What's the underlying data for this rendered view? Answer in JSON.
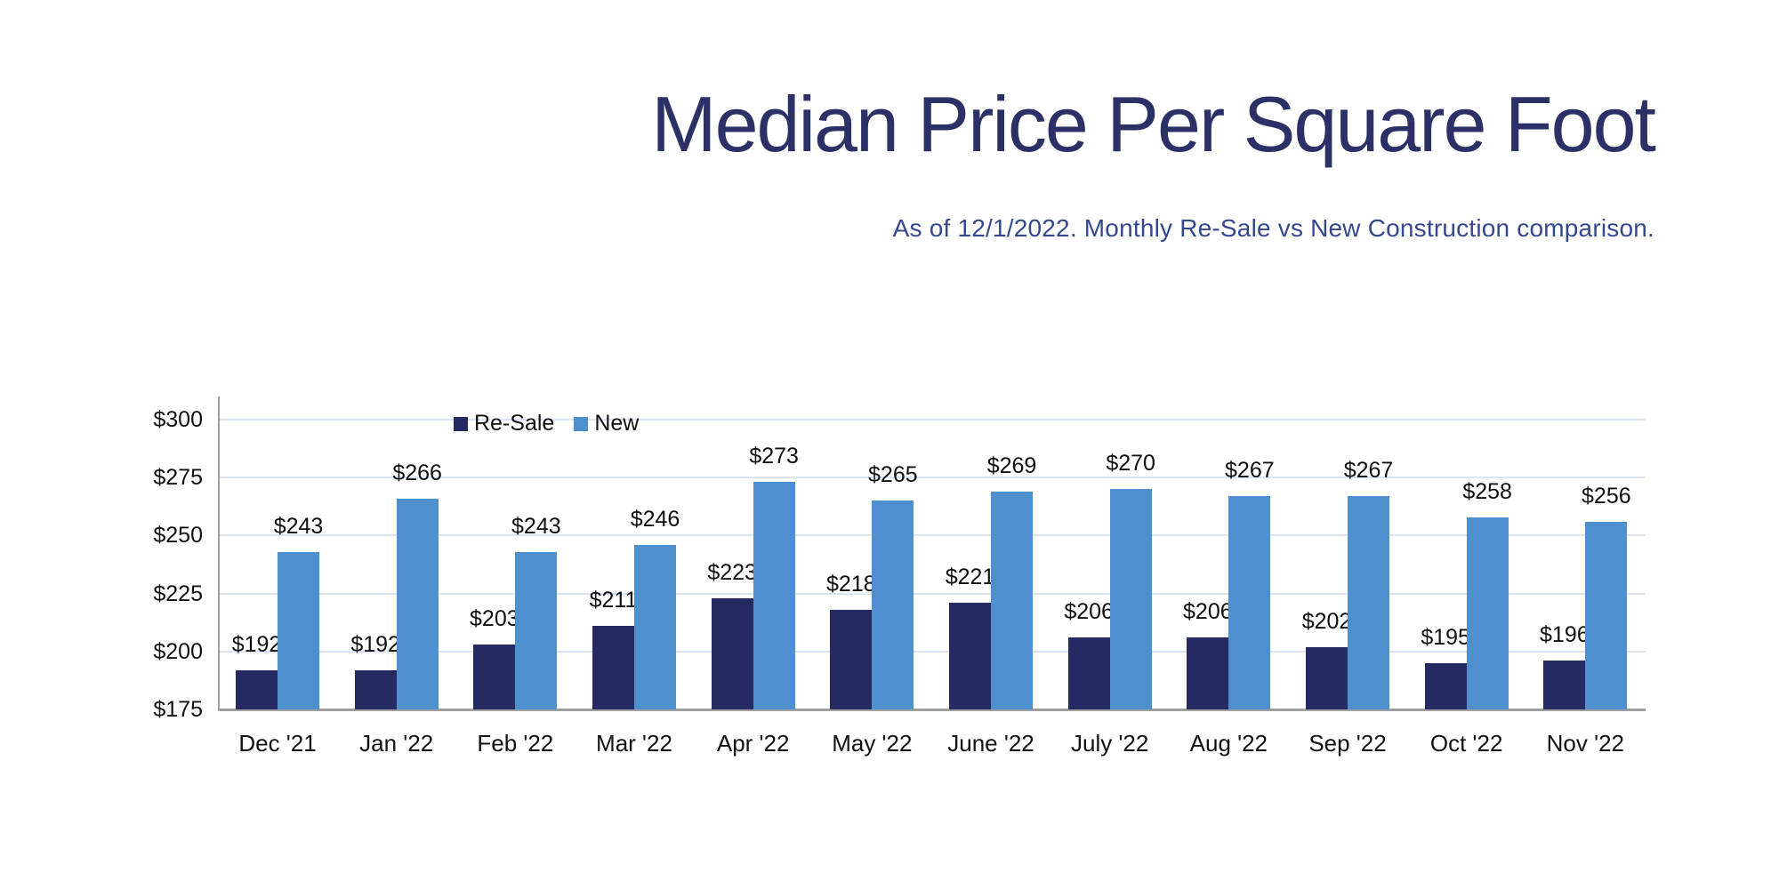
{
  "header": {
    "title": "Median Price Per Square Foot",
    "subtitle": "As of 12/1/2022. Monthly Re-Sale vs New Construction comparison."
  },
  "colors": {
    "title_text": "#2b3166",
    "subtitle_text": "#35488f",
    "resale_bar": "#262a63",
    "new_bar": "#4e90cd",
    "gridline": "#dde4f1",
    "axis_line": "#9f9f9f",
    "label_text": "#0f0f0f"
  },
  "chart_data": {
    "type": "bar",
    "title": "Median Price Per Square Foot",
    "subtitle": "As of 12/1/2022. Monthly Re-Sale vs New Construction comparison.",
    "categories": [
      "Dec '21",
      "Jan '22",
      "Feb '22",
      "Mar '22",
      "Apr '22",
      "May '22",
      "June '22",
      "July '22",
      "Aug '22",
      "Sep '22",
      "Oct '22",
      "Nov '22"
    ],
    "series": [
      {
        "name": "Re-Sale",
        "color": "#262a63",
        "values": [
          192,
          192,
          203,
          211,
          223,
          218,
          221,
          206,
          206,
          202,
          195,
          196
        ]
      },
      {
        "name": "New",
        "color": "#4e90cd",
        "values": [
          243,
          266,
          243,
          246,
          273,
          265,
          269,
          270,
          267,
          267,
          258,
          256
        ]
      }
    ],
    "value_label_prefix": "$",
    "data_labels": true,
    "xlabel": "",
    "ylabel": "",
    "y_axis": {
      "min": 175,
      "max": 300,
      "tick_step": 25,
      "tick_values": [
        300,
        275,
        250,
        225,
        200,
        175
      ],
      "tick_labels": [
        "$300",
        "$275",
        "$250",
        "$225",
        "$200",
        "$175"
      ],
      "prefix": "$"
    },
    "grid": true,
    "legend": {
      "position": "top-inside-plot",
      "entries": [
        "Re-Sale",
        "New"
      ]
    }
  }
}
